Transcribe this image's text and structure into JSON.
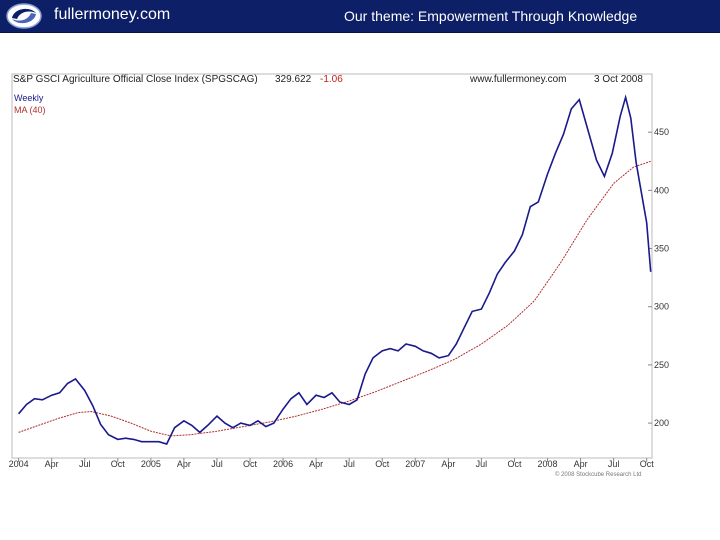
{
  "header": {
    "site_name": "fullermoney.com",
    "theme": "Our theme: Empowerment Through Knowledge",
    "logo_icon": "swirl-logo-icon"
  },
  "colors": {
    "header_bg": "#0d1f66",
    "price_line": "#1a1a8c",
    "ma_line": "#b03030"
  },
  "chart_data": {
    "type": "line",
    "title": "S&P GSCI Agriculture Official Close Index (SPGSCAG)",
    "last_value": "329.622",
    "change": "-1.06",
    "source": "www.fullermoney.com",
    "date": "3 Oct 2008",
    "legend": [
      "Weekly",
      "MA (40)"
    ],
    "copyright": "© 2008 Stockcube Research Ltd",
    "x_tick_labels": [
      "2004",
      "Apr",
      "Jul",
      "Oct",
      "2005",
      "Apr",
      "Jul",
      "Oct",
      "2006",
      "Apr",
      "Jul",
      "Oct",
      "2007",
      "Apr",
      "Jul",
      "Oct",
      "2008",
      "Apr",
      "Jul",
      "Oct"
    ],
    "y_ticks": [
      200,
      250,
      300,
      350,
      400,
      450
    ],
    "ylim": [
      170,
      500
    ],
    "x_range": [
      2003.95,
      2008.79
    ],
    "scale": "linear",
    "grid": false,
    "series": [
      {
        "name": "Weekly",
        "points": [
          [
            2004.0,
            208
          ],
          [
            2004.06,
            216
          ],
          [
            2004.12,
            221
          ],
          [
            2004.18,
            220
          ],
          [
            2004.25,
            224
          ],
          [
            2004.31,
            226
          ],
          [
            2004.37,
            234
          ],
          [
            2004.43,
            238
          ],
          [
            2004.5,
            228
          ],
          [
            2004.56,
            215
          ],
          [
            2004.62,
            199
          ],
          [
            2004.68,
            190
          ],
          [
            2004.75,
            186
          ],
          [
            2004.81,
            187
          ],
          [
            2004.87,
            186
          ],
          [
            2004.93,
            184
          ],
          [
            2005.0,
            184
          ],
          [
            2005.06,
            184
          ],
          [
            2005.12,
            182
          ],
          [
            2005.18,
            196
          ],
          [
            2005.25,
            202
          ],
          [
            2005.31,
            198
          ],
          [
            2005.37,
            192
          ],
          [
            2005.43,
            198
          ],
          [
            2005.5,
            206
          ],
          [
            2005.56,
            200
          ],
          [
            2005.62,
            196
          ],
          [
            2005.68,
            200
          ],
          [
            2005.75,
            198
          ],
          [
            2005.81,
            202
          ],
          [
            2005.87,
            197
          ],
          [
            2005.93,
            200
          ],
          [
            2006.0,
            212
          ],
          [
            2006.06,
            221
          ],
          [
            2006.12,
            226
          ],
          [
            2006.18,
            216
          ],
          [
            2006.25,
            224
          ],
          [
            2006.31,
            222
          ],
          [
            2006.37,
            226
          ],
          [
            2006.43,
            218
          ],
          [
            2006.5,
            216
          ],
          [
            2006.56,
            220
          ],
          [
            2006.62,
            242
          ],
          [
            2006.68,
            256
          ],
          [
            2006.75,
            262
          ],
          [
            2006.81,
            264
          ],
          [
            2006.87,
            262
          ],
          [
            2006.93,
            268
          ],
          [
            2007.0,
            266
          ],
          [
            2007.06,
            262
          ],
          [
            2007.12,
            260
          ],
          [
            2007.18,
            256
          ],
          [
            2007.25,
            258
          ],
          [
            2007.31,
            268
          ],
          [
            2007.37,
            282
          ],
          [
            2007.43,
            296
          ],
          [
            2007.5,
            298
          ],
          [
            2007.56,
            312
          ],
          [
            2007.62,
            328
          ],
          [
            2007.68,
            338
          ],
          [
            2007.75,
            348
          ],
          [
            2007.81,
            362
          ],
          [
            2007.87,
            386
          ],
          [
            2007.93,
            390
          ],
          [
            2008.0,
            414
          ],
          [
            2008.06,
            432
          ],
          [
            2008.12,
            448
          ],
          [
            2008.18,
            470
          ],
          [
            2008.24,
            478
          ],
          [
            2008.3,
            454
          ],
          [
            2008.37,
            426
          ],
          [
            2008.43,
            412
          ],
          [
            2008.49,
            432
          ],
          [
            2008.55,
            464
          ],
          [
            2008.59,
            480
          ],
          [
            2008.63,
            462
          ],
          [
            2008.67,
            424
          ],
          [
            2008.71,
            398
          ],
          [
            2008.75,
            372
          ],
          [
            2008.78,
            330
          ]
        ]
      },
      {
        "name": "MA (40)",
        "points": [
          [
            2004.0,
            192
          ],
          [
            2004.15,
            198
          ],
          [
            2004.3,
            204
          ],
          [
            2004.45,
            209
          ],
          [
            2004.55,
            210
          ],
          [
            2004.7,
            206
          ],
          [
            2004.85,
            200
          ],
          [
            2005.0,
            193
          ],
          [
            2005.15,
            189
          ],
          [
            2005.3,
            190
          ],
          [
            2005.5,
            193
          ],
          [
            2005.7,
            197
          ],
          [
            2005.9,
            201
          ],
          [
            2006.1,
            206
          ],
          [
            2006.3,
            212
          ],
          [
            2006.5,
            219
          ],
          [
            2006.7,
            227
          ],
          [
            2006.9,
            236
          ],
          [
            2007.1,
            245
          ],
          [
            2007.3,
            255
          ],
          [
            2007.5,
            268
          ],
          [
            2007.7,
            284
          ],
          [
            2007.9,
            305
          ],
          [
            2008.1,
            338
          ],
          [
            2008.3,
            375
          ],
          [
            2008.5,
            406
          ],
          [
            2008.65,
            420
          ],
          [
            2008.78,
            425
          ]
        ]
      }
    ]
  }
}
